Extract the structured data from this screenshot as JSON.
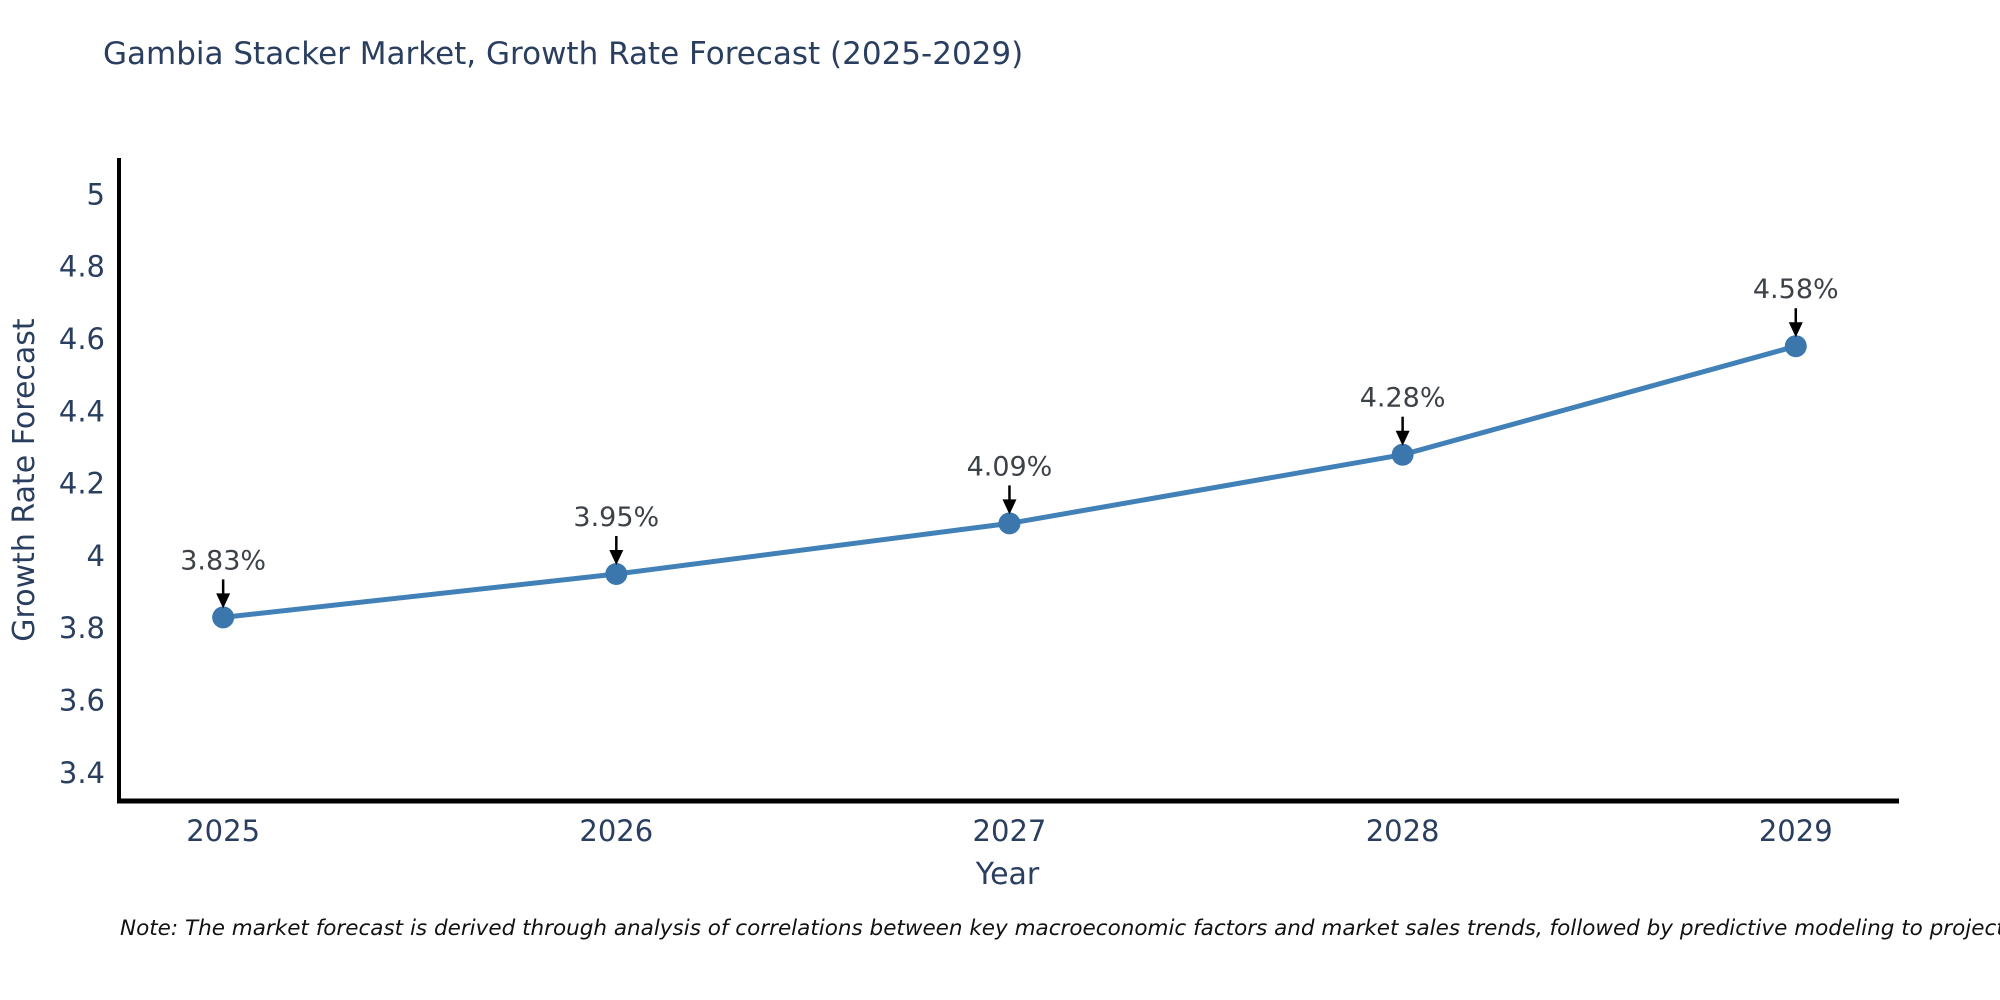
{
  "title": "Gambia Stacker Market, Growth Rate Forecast (2025-2029)",
  "note": "Note: The market forecast is derived through analysis of correlations between key macroeconomic factors and market sales trends, followed by predictive modeling to project future sales",
  "colors": {
    "background": "#ffffff",
    "title_text": "#2a3f5f",
    "axis_text": "#2a3f5f",
    "axis_line": "#000000",
    "series_line": "#4181b8",
    "marker_fill": "#3b76ad",
    "annotation_text": "#3d4148",
    "arrow": "#000000"
  },
  "chart_data": {
    "type": "line",
    "title": "Gambia Stacker Market, Growth Rate Forecast (2025-2029)",
    "xlabel": "Year",
    "ylabel": "Growth Rate Forecast",
    "x": [
      2025,
      2026,
      2027,
      2028,
      2029
    ],
    "values": [
      3.83,
      3.95,
      4.09,
      4.28,
      4.58
    ],
    "series_name": "Growth Rate Forecast",
    "annotations": [
      "3.83%",
      "3.95%",
      "4.09%",
      "4.28%",
      "4.58%"
    ],
    "xtick_labels": [
      "2025",
      "2026",
      "2027",
      "2028",
      "2029"
    ],
    "yticks": [
      3.4,
      3.6,
      3.8,
      4,
      4.2,
      4.4,
      4.6,
      4.8,
      5
    ],
    "ytick_labels": [
      "3.4",
      "3.6",
      "3.8",
      "4",
      "4.2",
      "4.4",
      "4.6",
      "4.8",
      "5"
    ],
    "xlim": [
      2024.73,
      2029.26
    ],
    "ylim": [
      3.325,
      5.095
    ],
    "grid": false,
    "legend": false,
    "marker": "circle",
    "annotation_arrows": true
  }
}
